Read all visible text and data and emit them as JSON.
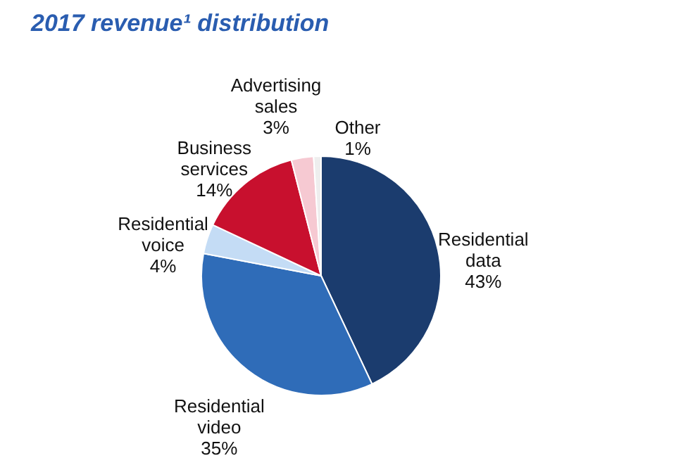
{
  "chart_data": {
    "type": "pie",
    "title": "2017 revenue¹ distribution",
    "categories": [
      "Residential data",
      "Residential video",
      "Residential voice",
      "Business services",
      "Advertising sales",
      "Other"
    ],
    "values": [
      43,
      35,
      4,
      14,
      3,
      1
    ],
    "colors": [
      "#1b3c6e",
      "#2f6cb8",
      "#c4dcf5",
      "#c8102e",
      "#f6c9d2",
      "#eeeeee"
    ],
    "data_labels": true,
    "value_labels": [
      "43%",
      "35%",
      "4%",
      "14%",
      "3%",
      "1%"
    ],
    "legend": false
  }
}
